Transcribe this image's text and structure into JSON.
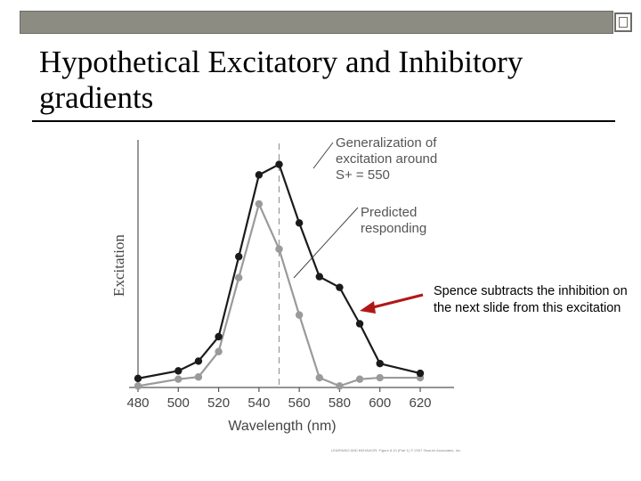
{
  "slide": {
    "title": "Hypothetical Excitatory and Inhibitory gradients",
    "callout": "Spence subtracts the inhibition on the next slide from this excitation",
    "credit": "LEARNING AND BEHAVIOR, Figure 8.10 (Part 1) © 2007 Sinauer Associates, Inc."
  },
  "colors": {
    "top_bar": "#8c8c83",
    "arrow": "#b01818",
    "excitation_series": "#1a1a1a",
    "predicted_series": "#9a9a9a"
  },
  "chart_data": {
    "type": "line",
    "xlabel": "Wavelength (nm)",
    "ylabel": "Excitation",
    "x_ticks": [
      480,
      500,
      520,
      540,
      560,
      580,
      600,
      620
    ],
    "xlim": [
      480,
      620
    ],
    "ylim": [
      0,
      10
    ],
    "reference_line": {
      "x": 550,
      "style": "dashed"
    },
    "series": [
      {
        "name": "Generalization of excitation around S+ = 550",
        "x": [
          480,
          500,
          510,
          520,
          530,
          540,
          550,
          560,
          570,
          580,
          590,
          600,
          620
        ],
        "y": [
          0.37,
          0.68,
          1.08,
          2.08,
          5.36,
          8.71,
          9.14,
          6.74,
          4.54,
          4.1,
          2.61,
          0.98,
          0.58
        ]
      },
      {
        "name": "Predicted responding",
        "x": [
          480,
          500,
          510,
          520,
          530,
          540,
          550,
          560,
          570,
          580,
          590,
          600,
          620
        ],
        "y": [
          0.06,
          0.34,
          0.43,
          1.47,
          4.5,
          7.52,
          5.67,
          2.97,
          0.4,
          0.06,
          0.34,
          0.4,
          0.4
        ]
      }
    ]
  }
}
